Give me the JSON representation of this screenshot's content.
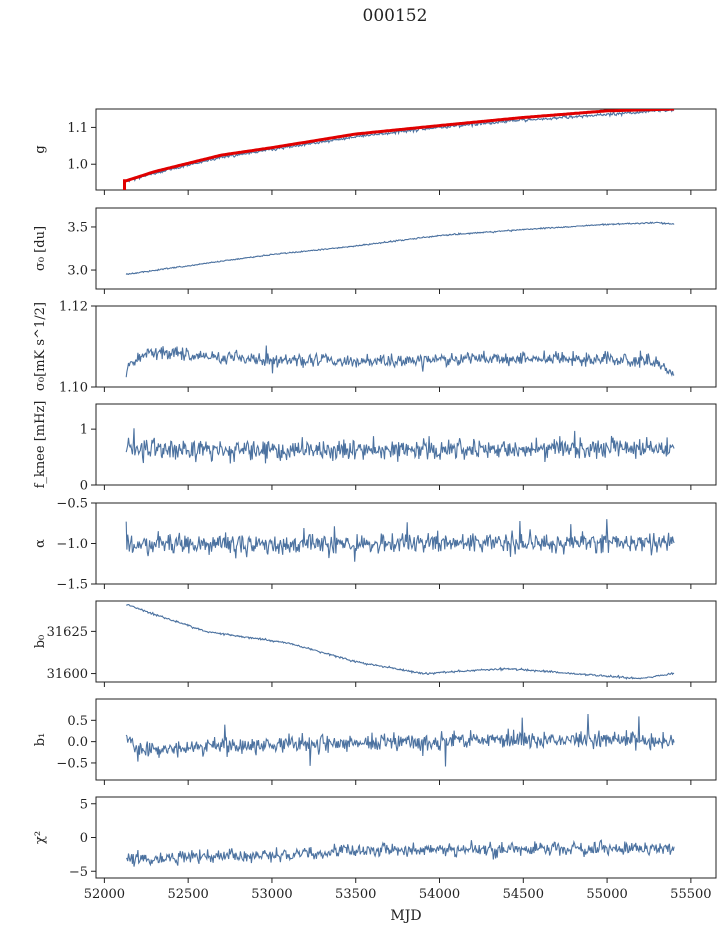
{
  "title": "000152",
  "chart_data": {
    "type": "line",
    "xlabel": "MJD",
    "xlim": [
      51950,
      55650
    ],
    "xticks": [
      52000,
      52500,
      53000,
      53500,
      54000,
      54500,
      55000,
      55500
    ],
    "x_range": [
      52130,
      55400
    ],
    "series_color": "#4c72a0",
    "highlight_color": "#e00000",
    "panels": [
      {
        "ylabel": "g",
        "ylim": [
          0.93,
          1.15
        ],
        "yticks": [
          1.0,
          1.1
        ],
        "ytick_labels": [
          "1.0",
          "1.1"
        ],
        "trend": [
          [
            52130,
            0.955
          ],
          [
            52300,
            0.975
          ],
          [
            52700,
            1.02
          ],
          [
            53000,
            1.04
          ],
          [
            53500,
            1.075
          ],
          [
            54000,
            1.1
          ],
          [
            54500,
            1.12
          ],
          [
            55000,
            1.135
          ],
          [
            55400,
            1.148
          ]
        ],
        "noise": 0.002,
        "spike_scale": 0,
        "highlight": {
          "trend": [
            [
              52130,
              0.955
            ],
            [
              52300,
              0.98
            ],
            [
              52700,
              1.025
            ],
            [
              53000,
              1.045
            ],
            [
              53500,
              1.082
            ],
            [
              54000,
              1.105
            ],
            [
              54500,
              1.127
            ],
            [
              55000,
              1.145
            ],
            [
              55400,
              1.15
            ]
          ],
          "drop_x": 52120,
          "drop_y": 0.93
        }
      },
      {
        "ylabel": "σ₀ [du]",
        "ylim": [
          2.78,
          3.72
        ],
        "yticks": [
          3.0,
          3.5
        ],
        "ytick_labels": [
          "3.0",
          "3.5"
        ],
        "trend": [
          [
            52130,
            2.95
          ],
          [
            52500,
            3.05
          ],
          [
            53000,
            3.18
          ],
          [
            53500,
            3.28
          ],
          [
            54000,
            3.4
          ],
          [
            54500,
            3.47
          ],
          [
            55000,
            3.53
          ],
          [
            55300,
            3.55
          ],
          [
            55400,
            3.53
          ]
        ],
        "noise": 0.004,
        "spike_scale": 0
      },
      {
        "ylabel": "σ₀[mK s^1/2]",
        "ylim": [
          1.1,
          1.12
        ],
        "yticks": [
          1.1,
          1.12
        ],
        "ytick_labels": [
          "1.10",
          "1.12"
        ],
        "trend": [
          [
            52130,
            1.104
          ],
          [
            52250,
            1.109
          ],
          [
            52600,
            1.1075
          ],
          [
            53200,
            1.1065
          ],
          [
            53700,
            1.1065
          ],
          [
            54200,
            1.107
          ],
          [
            55000,
            1.107
          ],
          [
            55300,
            1.106
          ],
          [
            55400,
            1.103
          ]
        ],
        "noise": 0.0008,
        "spike_scale": 0.002
      },
      {
        "ylabel": "f_knee [mHz]",
        "ylim": [
          0,
          1.45
        ],
        "yticks": [
          0,
          1
        ],
        "ytick_labels": [
          "0",
          "1"
        ],
        "trend": [
          [
            52130,
            0.62
          ],
          [
            55400,
            0.65
          ]
        ],
        "noise": 0.09,
        "spike_scale": 0.35
      },
      {
        "ylabel": "α",
        "ylim": [
          -1.5,
          -0.5
        ],
        "yticks": [
          -1.5,
          -1.0,
          -0.5
        ],
        "ytick_labels": [
          "−1.5",
          "−1.0",
          "−0.5"
        ],
        "trend": [
          [
            52130,
            -1.02
          ],
          [
            55400,
            -0.98
          ]
        ],
        "noise": 0.06,
        "spike_scale": 0.22
      },
      {
        "ylabel": "b₀",
        "ylim": [
          31595,
          31643
        ],
        "yticks": [
          31600,
          31625
        ],
        "ytick_labels": [
          "31600",
          "31625"
        ],
        "trend": [
          [
            52130,
            31641
          ],
          [
            52300,
            31635
          ],
          [
            52600,
            31625
          ],
          [
            53100,
            31618
          ],
          [
            53500,
            31607
          ],
          [
            53900,
            31600
          ],
          [
            54400,
            31603
          ],
          [
            54800,
            31600
          ],
          [
            55200,
            31597
          ],
          [
            55400,
            31600
          ]
        ],
        "noise": 0.3,
        "spike_scale": 0
      },
      {
        "ylabel": "b₁",
        "ylim": [
          -0.9,
          1.0
        ],
        "yticks": [
          -0.5,
          0.0,
          0.5
        ],
        "ytick_labels": [
          "−0.5",
          "0.0",
          "0.5"
        ],
        "trend": [
          [
            52130,
            0.1
          ],
          [
            52200,
            -0.2
          ],
          [
            52500,
            -0.15
          ],
          [
            53000,
            -0.05
          ],
          [
            53700,
            -0.02
          ],
          [
            54200,
            0.05
          ],
          [
            55000,
            0.05
          ],
          [
            55400,
            0.02
          ]
        ],
        "noise": 0.1,
        "spike_scale": 0.55
      },
      {
        "ylabel": "χ²",
        "ylim": [
          -6,
          6
        ],
        "yticks": [
          -5,
          0,
          5
        ],
        "ytick_labels": [
          "−5",
          "0",
          "5"
        ],
        "trend": [
          [
            52130,
            -3.0
          ],
          [
            52300,
            -3.2
          ],
          [
            52600,
            -2.8
          ],
          [
            53000,
            -2.6
          ],
          [
            53500,
            -2.0
          ],
          [
            54000,
            -1.6
          ],
          [
            54500,
            -1.8
          ],
          [
            55400,
            -1.6
          ]
        ],
        "noise": 0.5,
        "spike_scale": 1.6
      }
    ]
  }
}
